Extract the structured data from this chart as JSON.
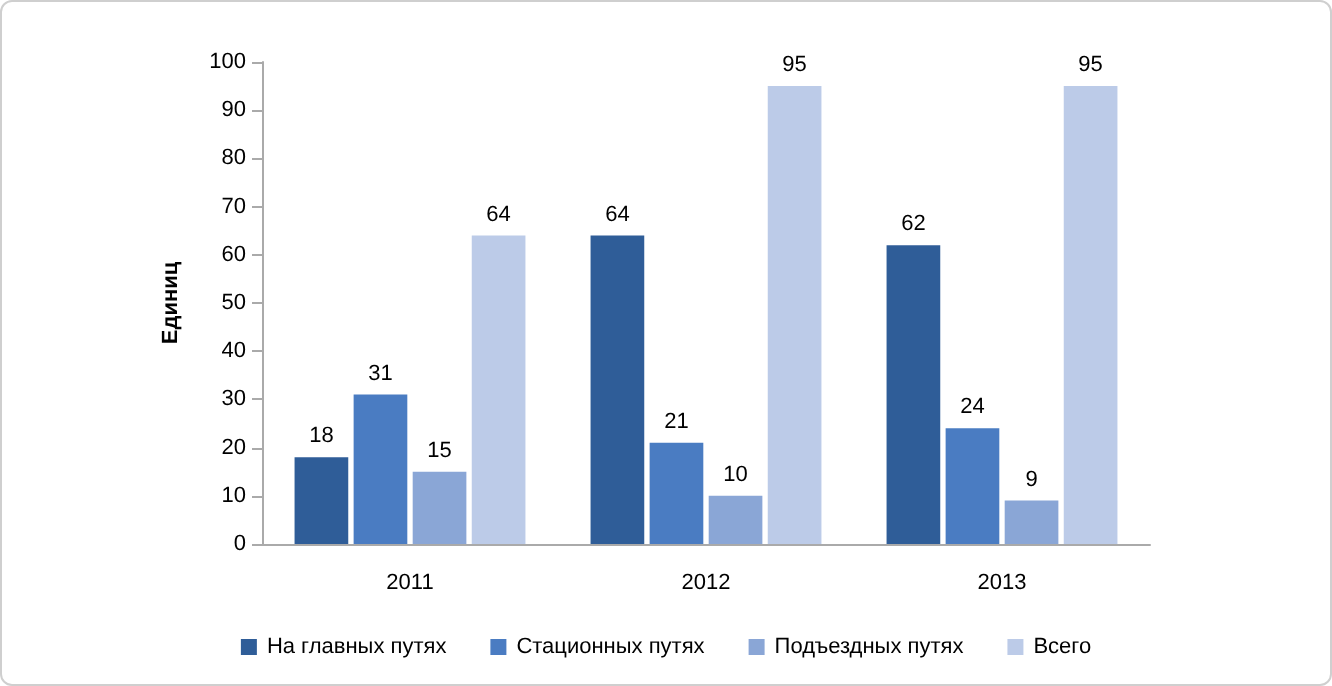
{
  "chart_data": {
    "type": "bar",
    "ylabel": "Единиц",
    "categories": [
      "2011",
      "2012",
      "2013"
    ],
    "series": [
      {
        "name": "На главных путях",
        "color": "#2f5d98",
        "values": [
          18,
          64,
          62
        ]
      },
      {
        "name": "Стационных путях",
        "color": "#4a7cc2",
        "values": [
          31,
          21,
          24
        ]
      },
      {
        "name": "Подъездных путях",
        "color": "#8aa6d6",
        "values": [
          15,
          10,
          9
        ]
      },
      {
        "name": "Всего",
        "color": "#bccbe8",
        "values": [
          64,
          95,
          95
        ]
      }
    ],
    "ylim": [
      0,
      100
    ],
    "yticks": [
      0,
      10,
      20,
      30,
      40,
      50,
      60,
      70,
      80,
      90,
      100
    ],
    "grid": false,
    "legend": "bottom",
    "data_labels": true
  }
}
